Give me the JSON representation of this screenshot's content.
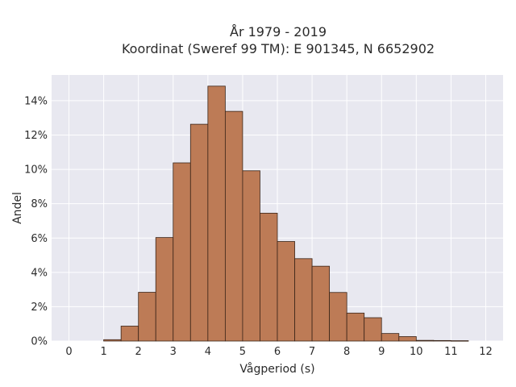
{
  "chart_data": {
    "type": "bar",
    "title_lines": [
      "År 1979 - 2019",
      "Koordinat (Sweref 99 TM): E 901345, N 6652902"
    ],
    "xlabel": "Vågperiod (s)",
    "ylabel": "Andel",
    "xlim": [
      -0.5,
      12.5
    ],
    "ylim": [
      0,
      0.155
    ],
    "x_ticks": [
      0,
      1,
      2,
      3,
      4,
      5,
      6,
      7,
      8,
      9,
      10,
      11,
      12
    ],
    "y_ticks": [
      0,
      0.02,
      0.04,
      0.06,
      0.08,
      0.1,
      0.12,
      0.14
    ],
    "y_tick_labels": [
      "0%",
      "2%",
      "4%",
      "6%",
      "8%",
      "10%",
      "12%",
      "14%"
    ],
    "bin_width": 0.5,
    "bins": [
      {
        "x0": 1.0,
        "value": 0.0008
      },
      {
        "x0": 1.5,
        "value": 0.0087
      },
      {
        "x0": 2.0,
        "value": 0.0284
      },
      {
        "x0": 2.5,
        "value": 0.0603
      },
      {
        "x0": 3.0,
        "value": 0.1038
      },
      {
        "x0": 3.5,
        "value": 0.1263
      },
      {
        "x0": 4.0,
        "value": 0.1485
      },
      {
        "x0": 4.5,
        "value": 0.1338
      },
      {
        "x0": 5.0,
        "value": 0.0992
      },
      {
        "x0": 5.5,
        "value": 0.0745
      },
      {
        "x0": 6.0,
        "value": 0.058
      },
      {
        "x0": 6.5,
        "value": 0.048
      },
      {
        "x0": 7.0,
        "value": 0.0436
      },
      {
        "x0": 7.5,
        "value": 0.0283
      },
      {
        "x0": 8.0,
        "value": 0.0163
      },
      {
        "x0": 8.5,
        "value": 0.0136
      },
      {
        "x0": 9.0,
        "value": 0.0044
      },
      {
        "x0": 9.5,
        "value": 0.0026
      },
      {
        "x0": 10.0,
        "value": 0.0004
      },
      {
        "x0": 10.5,
        "value": 0.0003
      },
      {
        "x0": 11.0,
        "value": 0.0002
      }
    ],
    "grid": true,
    "colors": {
      "bar": "#bd7b56",
      "bar_edge": "#3a2418",
      "plot_bg": "#e8e8f0",
      "grid": "#ffffff"
    }
  }
}
